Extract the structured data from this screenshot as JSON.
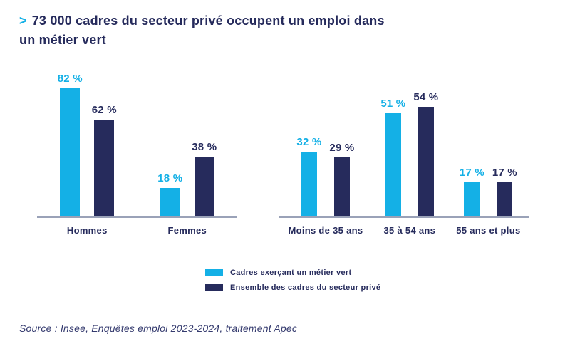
{
  "title": {
    "bullet": ">",
    "line1": "73 000 cadres du secteur privé occupent un emploi dans",
    "line2": "un métier vert",
    "full_text": "73 000 cadres du secteur privé occupent un emploi dans un métier vert"
  },
  "colors": {
    "accent_cyan": "#14b0e6",
    "navy": "#262b5c",
    "axis_gray": "#9aa2b8"
  },
  "legend": {
    "items": [
      {
        "label": "Cadres exerçant un métier vert",
        "color": "#14b0e6"
      },
      {
        "label": "Ensemble des cadres du secteur privé",
        "color": "#262b5c"
      }
    ]
  },
  "source": "Source : Insee, Enquêtes emploi 2023-2024, traitement Apec",
  "chart_data": [
    {
      "type": "bar",
      "name": "repartition-par-sexe",
      "categories": [
        "Hommes",
        "Femmes"
      ],
      "series": [
        {
          "name": "Cadres exerçant un métier vert",
          "color": "#14b0e6",
          "values": [
            82,
            18
          ]
        },
        {
          "name": "Ensemble des cadres du secteur privé",
          "color": "#262b5c",
          "values": [
            62,
            38
          ]
        }
      ],
      "unit": "%",
      "value_label_format": "{v} %",
      "ylim": [
        0,
        95
      ],
      "grid": false,
      "axis": "x-baseline-only",
      "data_labels": true
    },
    {
      "type": "bar",
      "name": "repartition-par-age",
      "categories": [
        "Moins de 35 ans",
        "35 à 54 ans",
        "55 ans et plus"
      ],
      "series": [
        {
          "name": "Cadres exerçant un métier vert",
          "color": "#14b0e6",
          "values": [
            32,
            51,
            17
          ]
        },
        {
          "name": "Ensemble des cadres du secteur privé",
          "color": "#262b5c",
          "values": [
            29,
            54,
            17
          ]
        }
      ],
      "unit": "%",
      "value_label_format": "{v} %",
      "ylim": [
        0,
        73
      ],
      "grid": false,
      "axis": "x-baseline-only",
      "data_labels": true
    }
  ]
}
